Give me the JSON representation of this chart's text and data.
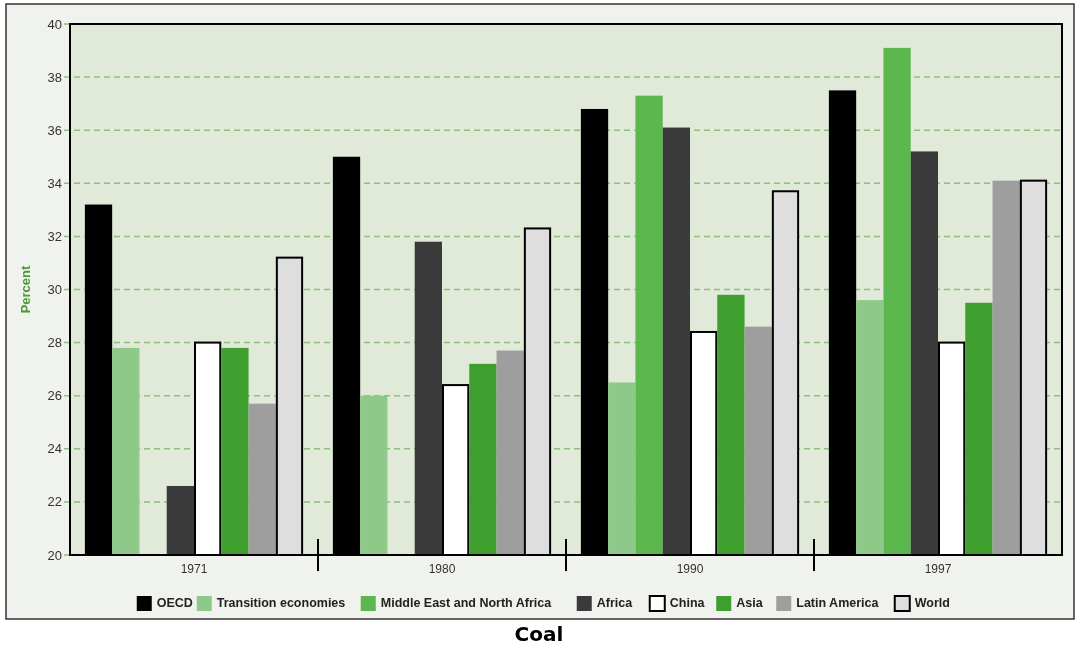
{
  "chart_data": {
    "type": "bar",
    "title": "Coal",
    "ylabel": "Percent",
    "categories": [
      "1971",
      "1980",
      "1990",
      "1997"
    ],
    "series": [
      {
        "name": "OECD",
        "color": "#000000",
        "values": [
          33.2,
          35.0,
          36.8,
          37.5
        ]
      },
      {
        "name": "Transition economies",
        "color": "#8fc98a",
        "values": [
          27.8,
          26.0,
          26.5,
          29.6
        ]
      },
      {
        "name": "Middle East and North Africa",
        "color": "#5cb84e",
        "values": [
          null,
          null,
          37.3,
          39.1
        ]
      },
      {
        "name": "Africa",
        "color": "#3a3a3a",
        "values": [
          22.6,
          31.8,
          36.1,
          35.2
        ]
      },
      {
        "name": "China",
        "color": "#ffffff",
        "values": [
          28.0,
          26.4,
          28.4,
          28.0
        ]
      },
      {
        "name": "Asia",
        "color": "#3e9e2e",
        "values": [
          27.8,
          27.2,
          29.8,
          29.5
        ]
      },
      {
        "name": "Latin America",
        "color": "#9e9e9e",
        "values": [
          25.7,
          27.7,
          28.6,
          34.1
        ]
      },
      {
        "name": "World",
        "color": "#dedede",
        "values": [
          31.2,
          32.3,
          33.7,
          34.1
        ]
      }
    ],
    "ylim": [
      20,
      40
    ],
    "yticks": [
      20,
      22,
      24,
      26,
      28,
      30,
      32,
      34,
      36,
      38,
      40
    ],
    "grid": "y",
    "legend": "bottom"
  }
}
